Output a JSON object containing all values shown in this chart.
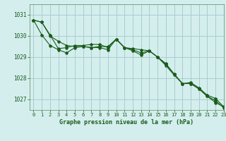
{
  "title": "Graphe pression niveau de la mer (hPa)",
  "background_color": "#d4eeee",
  "grid_color": "#aacccc",
  "line_color": "#1a5c1a",
  "spine_color": "#5a8a5a",
  "xlim": [
    -0.5,
    23
  ],
  "ylim": [
    1026.5,
    1031.5
  ],
  "yticks": [
    1027,
    1028,
    1029,
    1030,
    1031
  ],
  "xticks": [
    0,
    1,
    2,
    3,
    4,
    5,
    6,
    7,
    8,
    9,
    10,
    11,
    12,
    13,
    14,
    15,
    16,
    17,
    18,
    19,
    20,
    21,
    22,
    23
  ],
  "series": [
    [
      1030.75,
      1030.65,
      1030.0,
      1029.75,
      1029.55,
      1029.5,
      1029.5,
      1029.45,
      1029.5,
      1029.5,
      1029.85,
      1029.45,
      1029.4,
      1029.35,
      1029.3,
      1029.0,
      1028.7,
      1028.2,
      1027.75,
      1027.75,
      1027.5,
      1027.15,
      1026.85,
      1026.65
    ],
    [
      1030.75,
      1030.65,
      1030.05,
      1029.4,
      1029.45,
      1029.55,
      1029.55,
      1029.6,
      1029.6,
      1029.45,
      1029.85,
      1029.45,
      1029.35,
      1029.2,
      1029.3,
      1029.0,
      1028.65,
      1028.2,
      1027.75,
      1027.8,
      1027.55,
      1027.2,
      1027.05,
      1026.65
    ],
    [
      1030.75,
      1030.05,
      1029.55,
      1029.35,
      1029.2,
      1029.45,
      1029.5,
      1029.45,
      1029.45,
      1029.35,
      1029.85,
      1029.45,
      1029.3,
      1029.1,
      1029.3,
      1029.0,
      1028.6,
      1028.15,
      1027.75,
      1027.75,
      1027.5,
      1027.15,
      1026.95,
      1026.6
    ]
  ]
}
